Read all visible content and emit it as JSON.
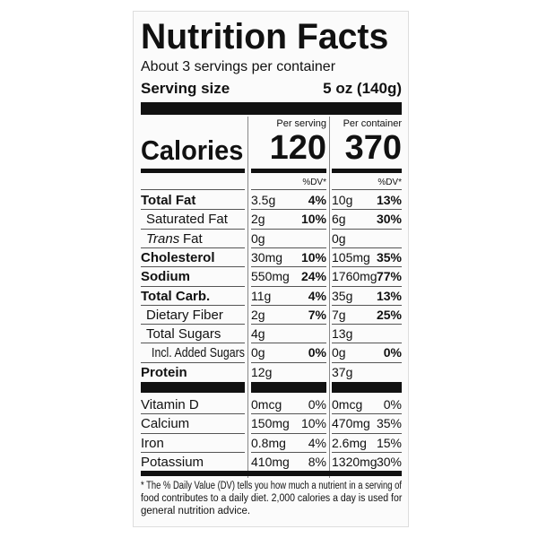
{
  "title": "Nutrition Facts",
  "servings": "About 3 servings per container",
  "serving_size": {
    "label": "Serving size",
    "value": "5 oz (140g)"
  },
  "columns": [
    "Per serving",
    "Per container"
  ],
  "calories": {
    "label": "Calories",
    "values": [
      "120",
      "370"
    ]
  },
  "dv_header": [
    "%DV*",
    "%DV*"
  ],
  "nutrients": [
    {
      "name": "Total Fat",
      "bold": true,
      "level": 0,
      "per_serving": [
        "3.5g",
        "4%"
      ],
      "per_container": [
        "10g",
        "13%"
      ]
    },
    {
      "name": "Saturated Fat",
      "bold": false,
      "level": 1,
      "per_serving": [
        "2g",
        "10%"
      ],
      "per_container": [
        "6g",
        "30%"
      ]
    },
    {
      "name_italic": "Trans",
      "name": "Fat",
      "bold": false,
      "level": 1,
      "per_serving": [
        "0g"
      ],
      "per_container": [
        "0g"
      ]
    },
    {
      "name": "Cholesterol",
      "bold": true,
      "level": 0,
      "per_serving": [
        "30mg",
        "10%"
      ],
      "per_container": [
        "105mg",
        "35%"
      ]
    },
    {
      "name": "Sodium",
      "bold": true,
      "level": 0,
      "per_serving": [
        "550mg",
        "24%"
      ],
      "per_container": [
        "1760mg",
        "77%"
      ]
    },
    {
      "name": "Total Carb.",
      "bold": true,
      "level": 0,
      "per_serving": [
        "11g",
        "4%"
      ],
      "per_container": [
        "35g",
        "13%"
      ]
    },
    {
      "name": "Dietary Fiber",
      "bold": false,
      "level": 1,
      "per_serving": [
        "2g",
        "7%"
      ],
      "per_container": [
        "7g",
        "25%"
      ]
    },
    {
      "name": "Total Sugars",
      "bold": false,
      "level": 1,
      "per_serving": [
        "4g"
      ],
      "per_container": [
        "13g"
      ]
    },
    {
      "name": "Incl. Added Sugars",
      "bold": false,
      "level": 2,
      "per_serving": [
        "0g",
        "0%"
      ],
      "per_container": [
        "0g",
        "0%"
      ]
    },
    {
      "name": "Protein",
      "bold": true,
      "level": 0,
      "per_serving": [
        "12g"
      ],
      "per_container": [
        "37g"
      ]
    }
  ],
  "vitamins": [
    {
      "name": "Vitamin D",
      "per_serving": [
        "0mcg",
        "0%"
      ],
      "per_container": [
        "0mcg",
        "0%"
      ]
    },
    {
      "name": "Calcium",
      "per_serving": [
        "150mg",
        "10%"
      ],
      "per_container": [
        "470mg",
        "35%"
      ]
    },
    {
      "name": "Iron",
      "per_serving": [
        "0.8mg",
        "4%"
      ],
      "per_container": [
        "2.6mg",
        "15%"
      ]
    },
    {
      "name": "Potassium",
      "per_serving": [
        "410mg",
        "8%"
      ],
      "per_container": [
        "1320mg",
        "30%"
      ]
    }
  ],
  "footnote": [
    "* The % Daily Value (DV) tells you how much a nutrient in a serving of",
    "food contributes to a daily diet. 2,000 calories a day is used for",
    "general nutrition advice."
  ]
}
